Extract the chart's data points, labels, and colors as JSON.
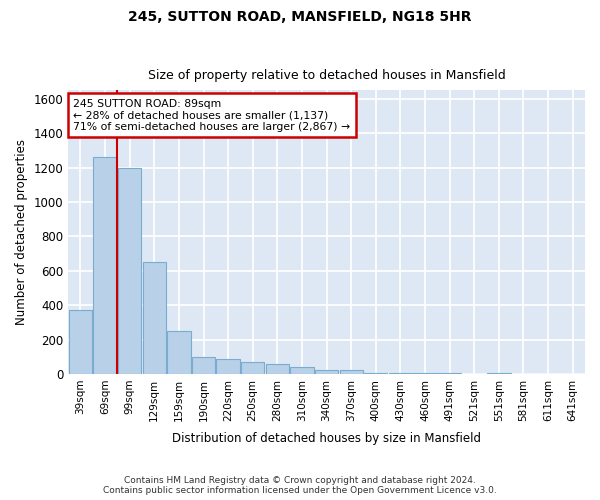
{
  "title1": "245, SUTTON ROAD, MANSFIELD, NG18 5HR",
  "title2": "Size of property relative to detached houses in Mansfield",
  "xlabel": "Distribution of detached houses by size in Mansfield",
  "ylabel": "Number of detached properties",
  "footer": "Contains HM Land Registry data © Crown copyright and database right 2024.\nContains public sector information licensed under the Open Government Licence v3.0.",
  "annotation_line1": "245 SUTTON ROAD: 89sqm",
  "annotation_line2": "← 28% of detached houses are smaller (1,137)",
  "annotation_line3": "71% of semi-detached houses are larger (2,867) →",
  "bar_color": "#b8d0e8",
  "bar_edge_color": "#7aacd0",
  "bg_color": "#dde8f4",
  "grid_color": "#ffffff",
  "property_line_color": "#cc0000",
  "annotation_box_color": "#cc0000",
  "categories": [
    "39sqm",
    "69sqm",
    "99sqm",
    "129sqm",
    "159sqm",
    "190sqm",
    "220sqm",
    "250sqm",
    "280sqm",
    "310sqm",
    "340sqm",
    "370sqm",
    "400sqm",
    "430sqm",
    "460sqm",
    "491sqm",
    "521sqm",
    "551sqm",
    "581sqm",
    "611sqm",
    "641sqm"
  ],
  "values": [
    370,
    1260,
    1200,
    650,
    250,
    100,
    85,
    70,
    55,
    40,
    20,
    20,
    8,
    3,
    3,
    8,
    0,
    3,
    0,
    0,
    0
  ],
  "ylim": [
    0,
    1650
  ],
  "yticks": [
    0,
    200,
    400,
    600,
    800,
    1000,
    1200,
    1400,
    1600
  ],
  "property_line_x": 1.47
}
